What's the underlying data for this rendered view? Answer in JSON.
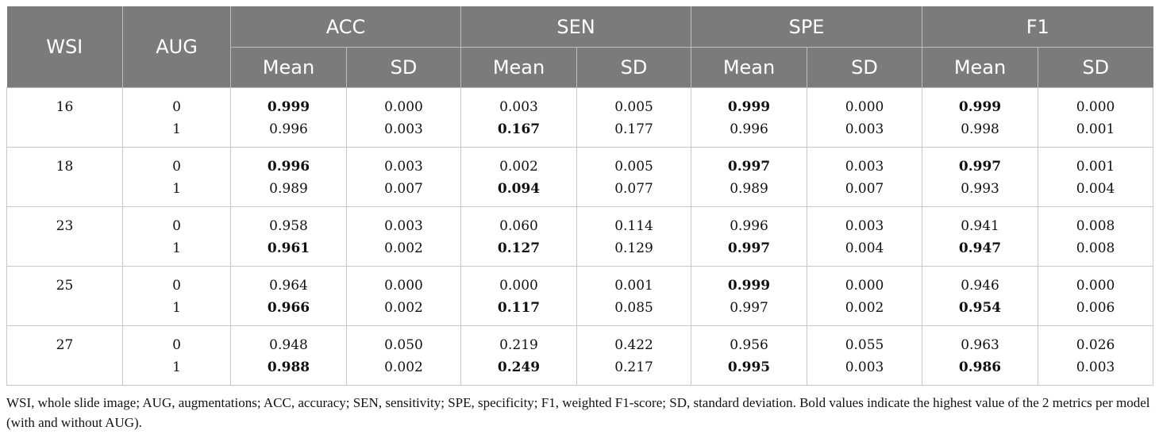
{
  "headers": {
    "wsi": "WSI",
    "aug": "AUG",
    "groups": [
      "ACC",
      "SEN",
      "SPE",
      "F1"
    ],
    "sub": [
      "Mean",
      "SD"
    ]
  },
  "rows": [
    {
      "wsi": "16",
      "aug": [
        "0",
        "1"
      ],
      "values": [
        [
          "0.999",
          "0.996"
        ],
        [
          "0.000",
          "0.003"
        ],
        [
          "0.003",
          "0.167"
        ],
        [
          "0.005",
          "0.177"
        ],
        [
          "0.999",
          "0.996"
        ],
        [
          "0.000",
          "0.003"
        ],
        [
          "0.999",
          "0.998"
        ],
        [
          "0.000",
          "0.001"
        ]
      ],
      "bold": [
        [
          1,
          0
        ],
        [
          0,
          0
        ],
        [
          0,
          1
        ],
        [
          0,
          0
        ],
        [
          1,
          0
        ],
        [
          0,
          0
        ],
        [
          1,
          0
        ],
        [
          0,
          0
        ]
      ]
    },
    {
      "wsi": "18",
      "aug": [
        "0",
        "1"
      ],
      "values": [
        [
          "0.996",
          "0.989"
        ],
        [
          "0.003",
          "0.007"
        ],
        [
          "0.002",
          "0.094"
        ],
        [
          "0.005",
          "0.077"
        ],
        [
          "0.997",
          "0.989"
        ],
        [
          "0.003",
          "0.007"
        ],
        [
          "0.997",
          "0.993"
        ],
        [
          "0.001",
          "0.004"
        ]
      ],
      "bold": [
        [
          1,
          0
        ],
        [
          0,
          0
        ],
        [
          0,
          1
        ],
        [
          0,
          0
        ],
        [
          1,
          0
        ],
        [
          0,
          0
        ],
        [
          1,
          0
        ],
        [
          0,
          0
        ]
      ]
    },
    {
      "wsi": "23",
      "aug": [
        "0",
        "1"
      ],
      "values": [
        [
          "0.958",
          "0.961"
        ],
        [
          "0.003",
          "0.002"
        ],
        [
          "0.060",
          "0.127"
        ],
        [
          "0.114",
          "0.129"
        ],
        [
          "0.996",
          "0.997"
        ],
        [
          "0.003",
          "0.004"
        ],
        [
          "0.941",
          "0.947"
        ],
        [
          "0.008",
          "0.008"
        ]
      ],
      "bold": [
        [
          0,
          1
        ],
        [
          0,
          0
        ],
        [
          0,
          1
        ],
        [
          0,
          0
        ],
        [
          0,
          1
        ],
        [
          0,
          0
        ],
        [
          0,
          1
        ],
        [
          0,
          0
        ]
      ]
    },
    {
      "wsi": "25",
      "aug": [
        "0",
        "1"
      ],
      "values": [
        [
          "0.964",
          "0.966"
        ],
        [
          "0.000",
          "0.002"
        ],
        [
          "0.000",
          "0.117"
        ],
        [
          "0.001",
          "0.085"
        ],
        [
          "0.999",
          "0.997"
        ],
        [
          "0.000",
          "0.002"
        ],
        [
          "0.946",
          "0.954"
        ],
        [
          "0.000",
          "0.006"
        ]
      ],
      "bold": [
        [
          0,
          1
        ],
        [
          0,
          0
        ],
        [
          0,
          1
        ],
        [
          0,
          0
        ],
        [
          1,
          0
        ],
        [
          0,
          0
        ],
        [
          0,
          1
        ],
        [
          0,
          0
        ]
      ]
    },
    {
      "wsi": "27",
      "aug": [
        "0",
        "1"
      ],
      "values": [
        [
          "0.948",
          "0.988"
        ],
        [
          "0.050",
          "0.002"
        ],
        [
          "0.219",
          "0.249"
        ],
        [
          "0.422",
          "0.217"
        ],
        [
          "0.956",
          "0.995"
        ],
        [
          "0.055",
          "0.003"
        ],
        [
          "0.963",
          "0.986"
        ],
        [
          "0.026",
          "0.003"
        ]
      ],
      "bold": [
        [
          0,
          1
        ],
        [
          0,
          0
        ],
        [
          0,
          1
        ],
        [
          0,
          0
        ],
        [
          0,
          1
        ],
        [
          0,
          0
        ],
        [
          0,
          1
        ],
        [
          0,
          0
        ]
      ]
    }
  ],
  "footnote": "WSI, whole slide image; AUG, augmentations; ACC, accuracy; SEN, sensitivity; SPE, specificity; F1, weighted F1-score; SD, standard deviation. Bold values indicate the highest value of the 2 metrics per model (with and without AUG).",
  "colors": {
    "header_bg": "#7b7b7b",
    "header_text": "#ffffff",
    "grid": "#c8c8c8"
  }
}
